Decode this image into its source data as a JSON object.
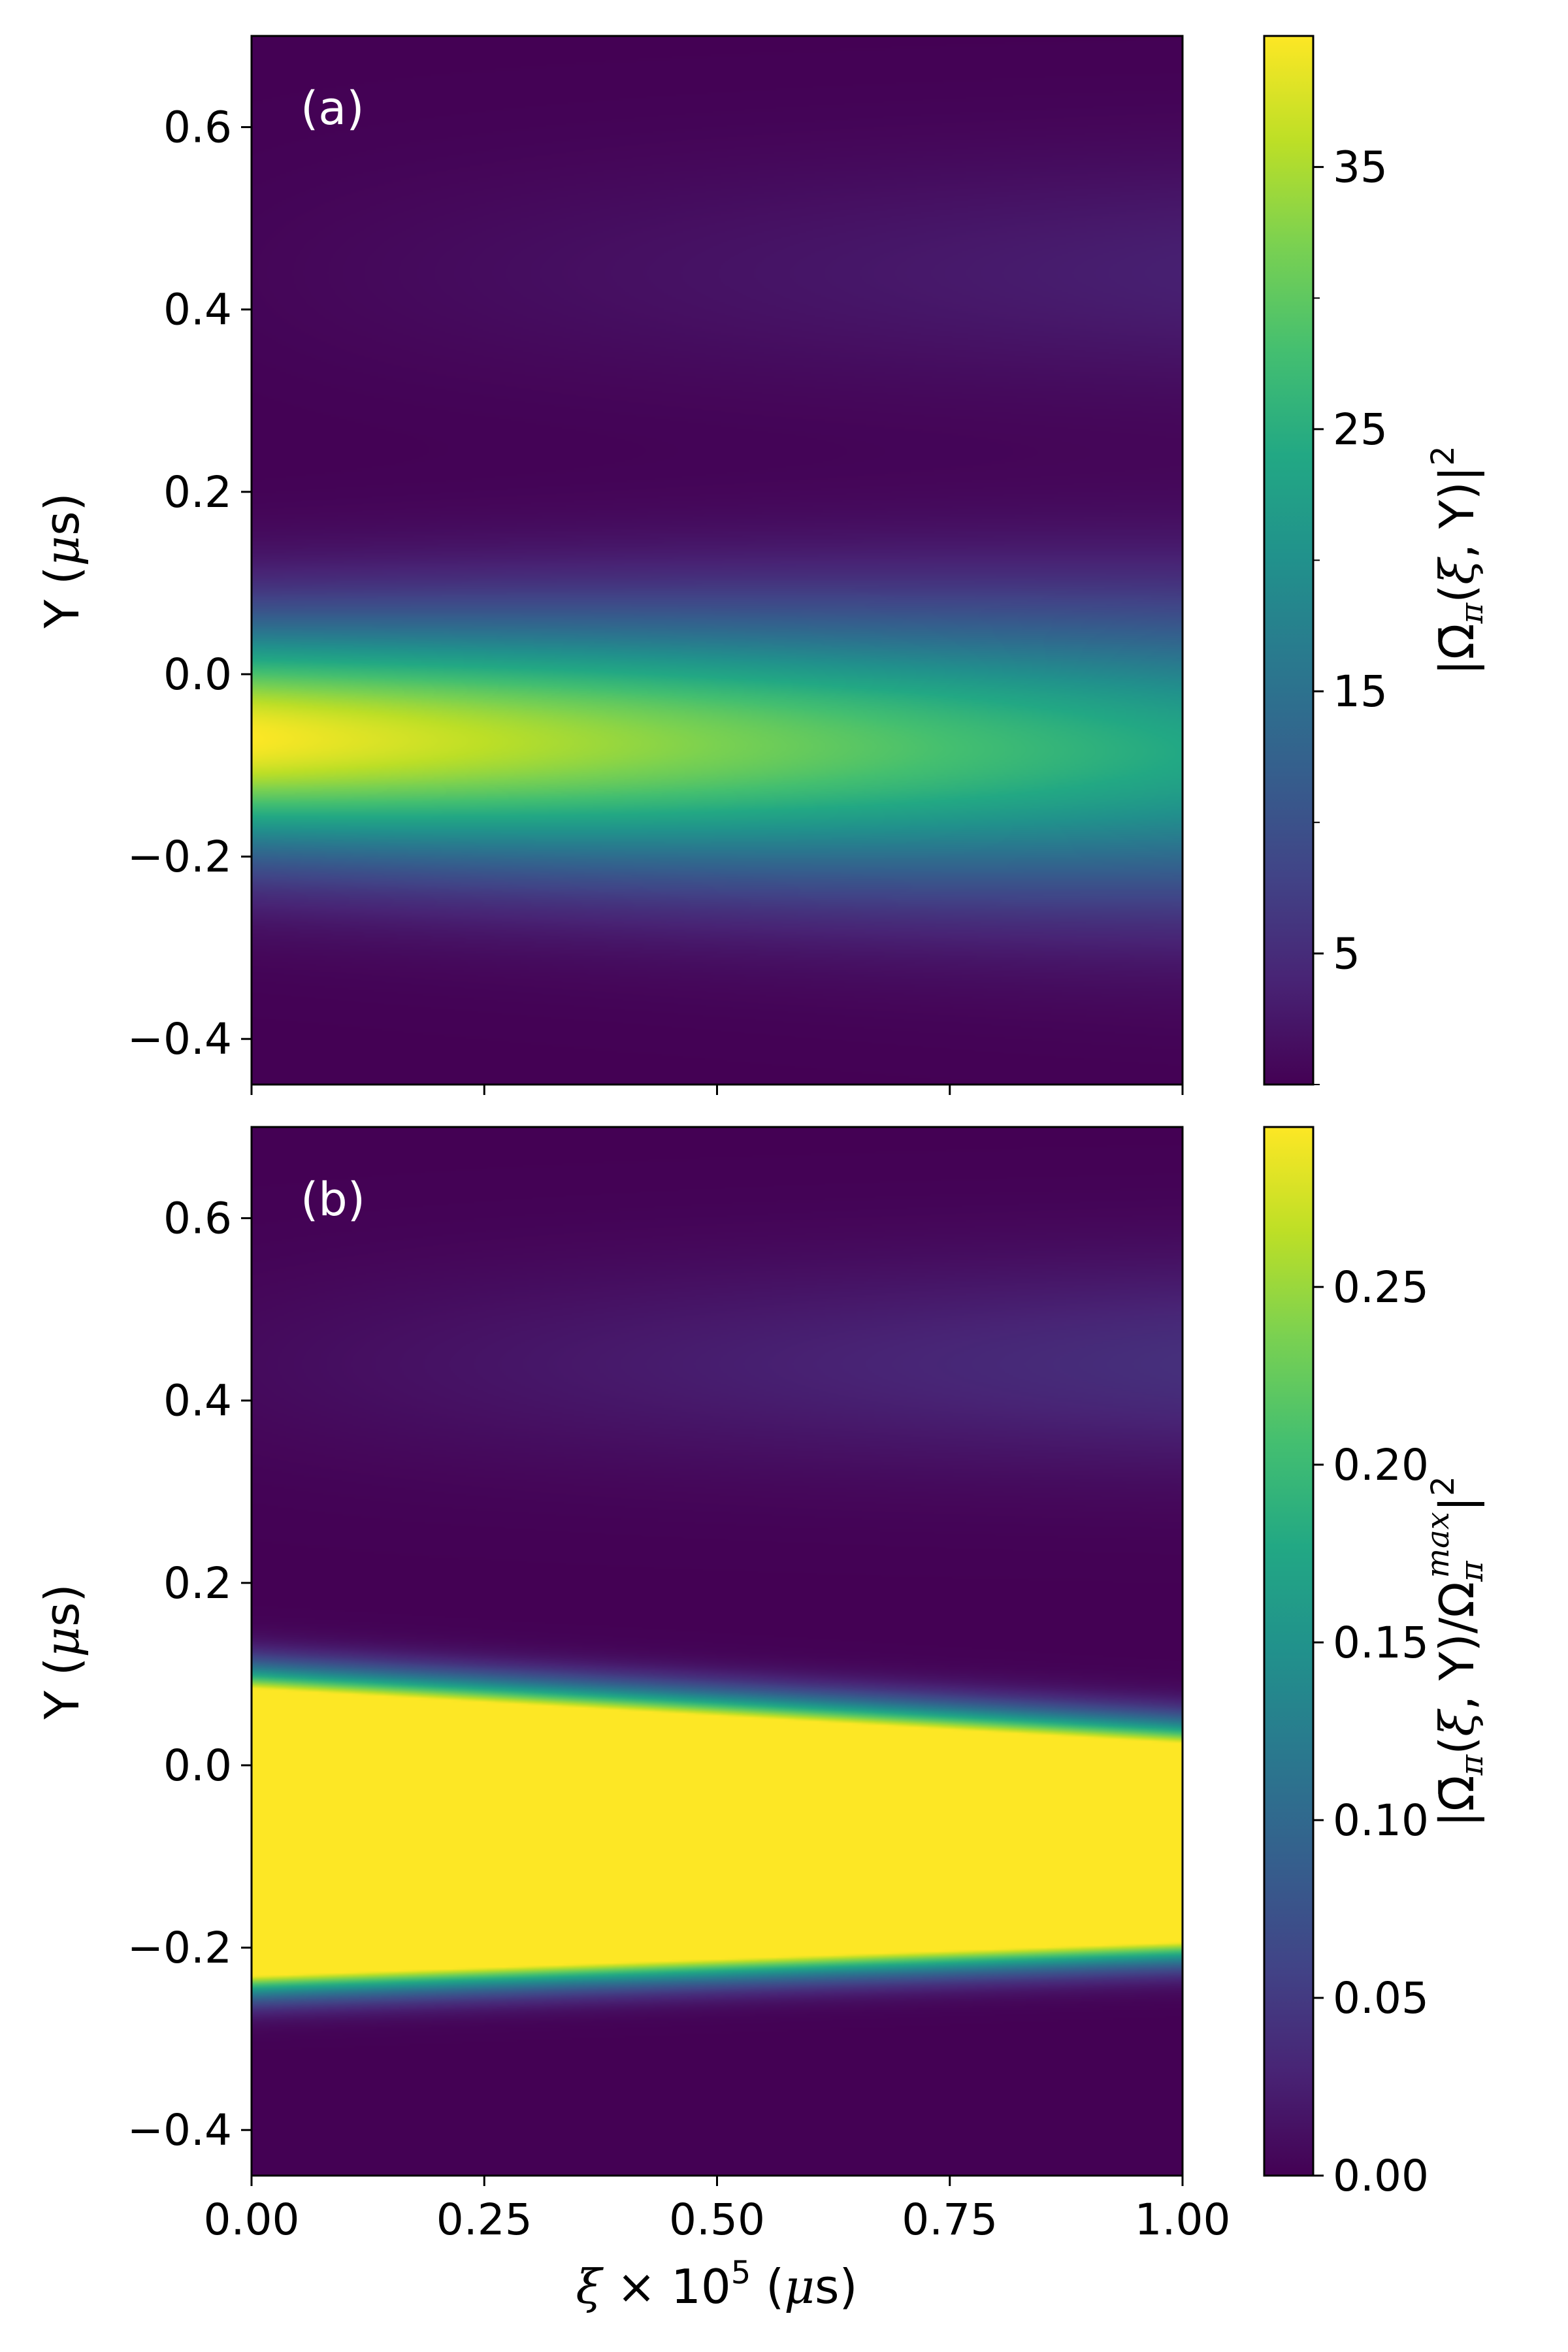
{
  "chart_data": [
    {
      "type": "heatmap",
      "panel_label": "(a)",
      "x_range": [
        0.0,
        1.0
      ],
      "ylim": [
        -0.45,
        0.7
      ],
      "yticks": [
        -0.4,
        -0.2,
        0.0,
        0.2,
        0.4,
        0.6
      ],
      "ytick_labels": [
        "−0.4",
        "−0.2",
        "0.0",
        "0.2",
        "0.4",
        "0.6"
      ],
      "xticks": [
        0.0,
        0.25,
        0.5,
        0.75,
        1.0
      ],
      "xtick_labels": [
        "",
        "",
        "",
        "",
        ""
      ],
      "ylabel": "Y (μs)",
      "colormap": "viridis",
      "colorbar": {
        "range": [
          0,
          40
        ],
        "ticks": [
          5,
          15,
          25,
          35
        ],
        "tick_labels": [
          "5",
          "15",
          "25",
          "35"
        ],
        "label": "|Ω̄π(ξ, Y)|²"
      },
      "field_model": {
        "description_of_values": "Gaussian beam along ξ with weak side lobe near Y≈0.45",
        "center_y": [
          -0.07,
          -0.085
        ],
        "width_y": [
          0.085,
          0.11
        ],
        "peak_value": [
          40,
          24
        ],
        "lobe_center_y": 0.44,
        "lobe_peak_value": [
          0.5,
          3.5
        ]
      }
    },
    {
      "type": "heatmap",
      "panel_label": "(b)",
      "x_range": [
        0.0,
        1.0
      ],
      "ylim": [
        -0.45,
        0.7
      ],
      "yticks": [
        -0.4,
        -0.2,
        0.0,
        0.2,
        0.4,
        0.6
      ],
      "ytick_labels": [
        "−0.4",
        "−0.2",
        "0.0",
        "0.2",
        "0.4",
        "0.6"
      ],
      "xticks": [
        0.0,
        0.25,
        0.5,
        0.75,
        1.0
      ],
      "xtick_labels": [
        "0.00",
        "0.25",
        "0.50",
        "0.75",
        "1.00"
      ],
      "xlabel": "ξ × 10⁵ (μs)",
      "ylabel": "Y (μs)",
      "colormap": "viridis",
      "colorbar": {
        "range": [
          0.0,
          0.295
        ],
        "ticks": [
          0.0,
          0.05,
          0.1,
          0.15,
          0.2,
          0.25
        ],
        "tick_labels": [
          "0.00",
          "0.05",
          "0.10",
          "0.15",
          "0.20",
          "0.25"
        ],
        "label": "|Ω̄π(ξ, Y)/Ωπᵐᵃˣ|²"
      },
      "field_model": {
        "description_of_values": "saturated normalized intensity; yellow band from Y≈0.05 to −0.20 at ξ=0 narrowing to 0.0 to −0.17 at ξ=1",
        "band_top_y": [
          0.055,
          -0.005
        ],
        "band_bottom_y": [
          -0.205,
          -0.168
        ],
        "lobe_center_y": 0.44,
        "lobe_peak_value": [
          0.008,
          0.04
        ]
      }
    }
  ]
}
